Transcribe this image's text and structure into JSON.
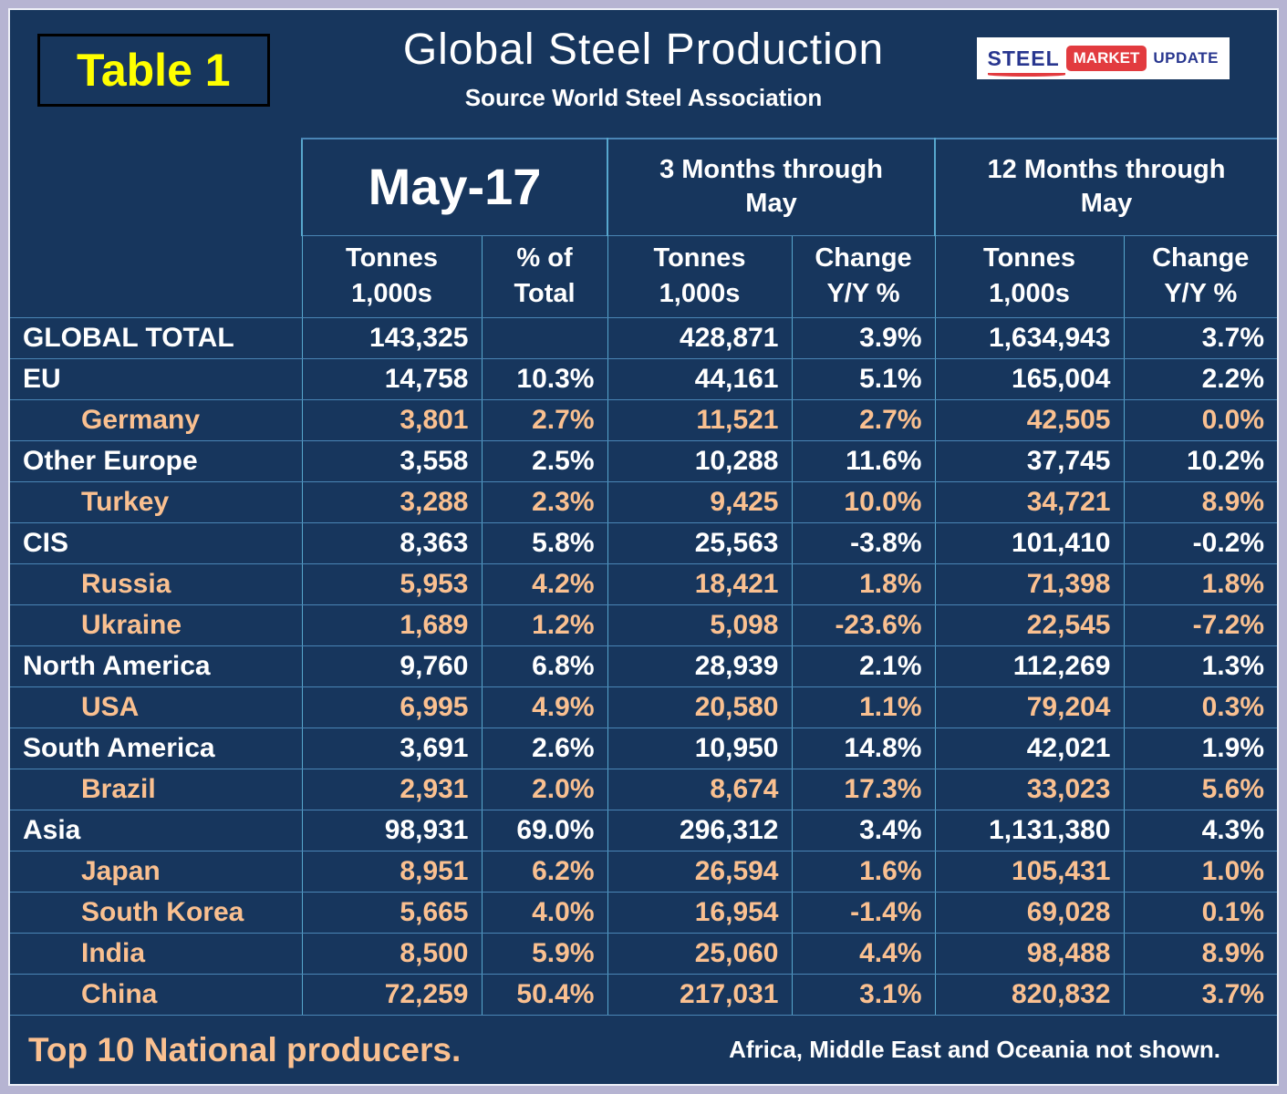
{
  "header": {
    "table_label": "Table 1",
    "title": "Global Steel Production",
    "source": "Source World Steel Association"
  },
  "logo": {
    "steel": "STEEL",
    "market": "MARKET",
    "update": "UPDATE"
  },
  "footer": {
    "left_text": "Top 10 National producers.",
    "right_text": "Africa, Middle East and Oceania not shown."
  },
  "colors": {
    "background_navy": "#17365D",
    "frame_lavender": "#B6B4D2",
    "region_text": "#FFFFFF",
    "country_text": "#FAC090",
    "table_label_yellow": "#FFFF00",
    "grid_line_horizontal": "#4A85B5",
    "grid_line_vertical": "#57A7CD",
    "logo_blue": "#28368F",
    "logo_red": "#E23B3F"
  },
  "chart_data": {
    "type": "table",
    "title": "Global Steel Production",
    "source": "Source World Steel Association",
    "units": "Tonnes 1,000s",
    "column_groups": [
      {
        "label": "May-17",
        "span": 2,
        "lines": [
          "May-17"
        ]
      },
      {
        "label": "3 Months through May",
        "span": 2,
        "lines": [
          "3 Months through",
          "May"
        ]
      },
      {
        "label": "12 Months through May",
        "span": 2,
        "lines": [
          "12 Months through",
          "May"
        ]
      }
    ],
    "columns": [
      {
        "label": "Tonnes 1,000s",
        "lines": [
          "Tonnes",
          "1,000s"
        ]
      },
      {
        "label": "% of Total",
        "lines": [
          "% of",
          "Total"
        ]
      },
      {
        "label": "Tonnes 1,000s",
        "lines": [
          "Tonnes",
          "1,000s"
        ]
      },
      {
        "label": "Change Y/Y %",
        "lines": [
          "Change",
          "Y/Y %"
        ]
      },
      {
        "label": "Tonnes 1,000s",
        "lines": [
          "Tonnes",
          "1,000s"
        ]
      },
      {
        "label": "Change Y/Y %",
        "lines": [
          "Change",
          "Y/Y %"
        ]
      }
    ],
    "rows": [
      {
        "label": "GLOBAL TOTAL",
        "level": "region",
        "values": [
          "143,325",
          "",
          "428,871",
          "3.9%",
          "1,634,943",
          "3.7%"
        ]
      },
      {
        "label": "EU",
        "level": "region",
        "values": [
          "14,758",
          "10.3%",
          "44,161",
          "5.1%",
          "165,004",
          "2.2%"
        ]
      },
      {
        "label": "Germany",
        "level": "country",
        "values": [
          "3,801",
          "2.7%",
          "11,521",
          "2.7%",
          "42,505",
          "0.0%"
        ]
      },
      {
        "label": "Other Europe",
        "level": "region",
        "values": [
          "3,558",
          "2.5%",
          "10,288",
          "11.6%",
          "37,745",
          "10.2%"
        ]
      },
      {
        "label": "Turkey",
        "level": "country",
        "values": [
          "3,288",
          "2.3%",
          "9,425",
          "10.0%",
          "34,721",
          "8.9%"
        ]
      },
      {
        "label": "CIS",
        "level": "region",
        "values": [
          "8,363",
          "5.8%",
          "25,563",
          "-3.8%",
          "101,410",
          "-0.2%"
        ]
      },
      {
        "label": "Russia",
        "level": "country",
        "values": [
          "5,953",
          "4.2%",
          "18,421",
          "1.8%",
          "71,398",
          "1.8%"
        ]
      },
      {
        "label": "Ukraine",
        "level": "country",
        "values": [
          "1,689",
          "1.2%",
          "5,098",
          "-23.6%",
          "22,545",
          "-7.2%"
        ]
      },
      {
        "label": "North America",
        "level": "region",
        "values": [
          "9,760",
          "6.8%",
          "28,939",
          "2.1%",
          "112,269",
          "1.3%"
        ]
      },
      {
        "label": "USA",
        "level": "country",
        "values": [
          "6,995",
          "4.9%",
          "20,580",
          "1.1%",
          "79,204",
          "0.3%"
        ]
      },
      {
        "label": "South America",
        "level": "region",
        "values": [
          "3,691",
          "2.6%",
          "10,950",
          "14.8%",
          "42,021",
          "1.9%"
        ]
      },
      {
        "label": "Brazil",
        "level": "country",
        "values": [
          "2,931",
          "2.0%",
          "8,674",
          "17.3%",
          "33,023",
          "5.6%"
        ]
      },
      {
        "label": "Asia",
        "level": "region",
        "values": [
          "98,931",
          "69.0%",
          "296,312",
          "3.4%",
          "1,131,380",
          "4.3%"
        ]
      },
      {
        "label": "Japan",
        "level": "country",
        "values": [
          "8,951",
          "6.2%",
          "26,594",
          "1.6%",
          "105,431",
          "1.0%"
        ]
      },
      {
        "label": "South Korea",
        "level": "country",
        "values": [
          "5,665",
          "4.0%",
          "16,954",
          "-1.4%",
          "69,028",
          "0.1%"
        ]
      },
      {
        "label": "India",
        "level": "country",
        "values": [
          "8,500",
          "5.9%",
          "25,060",
          "4.4%",
          "98,488",
          "8.9%"
        ]
      },
      {
        "label": "China",
        "level": "country",
        "values": [
          "72,259",
          "50.4%",
          "217,031",
          "3.1%",
          "820,832",
          "3.7%"
        ]
      }
    ]
  }
}
